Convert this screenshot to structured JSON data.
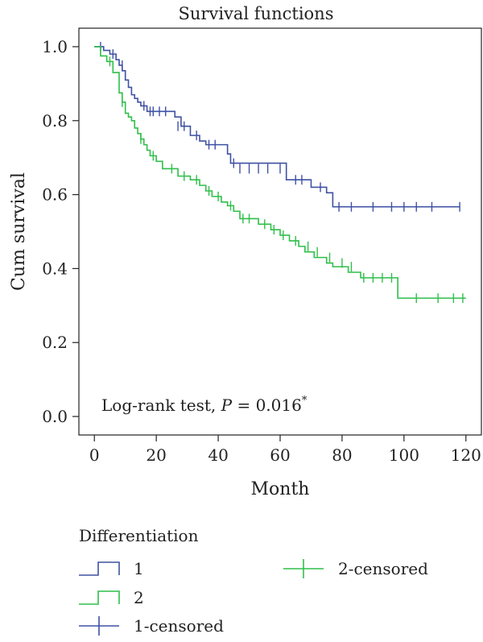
{
  "chart_data": {
    "type": "line",
    "title": "Survival functions",
    "xlabel": "Month",
    "ylabel": "Cum survival",
    "xlim": [
      -5,
      125
    ],
    "ylim": [
      -0.05,
      1.05
    ],
    "xticks": [
      0,
      20,
      40,
      60,
      80,
      100,
      120
    ],
    "xtick_labels": [
      "0",
      "20",
      "40",
      "60",
      "80",
      "100",
      "120"
    ],
    "yticks": [
      0.0,
      0.2,
      0.4,
      0.6,
      0.8,
      1.0
    ],
    "ytick_labels": [
      "0.0",
      "0.2",
      "0.4",
      "0.6",
      "0.8",
      "1.0"
    ],
    "grid": false,
    "step": true,
    "annotation": {
      "prefix": "Log-rank test, ",
      "italic": "P",
      "suffix": " = 0.016",
      "superscript": "*"
    },
    "legend": {
      "title": "Differentiation",
      "entries": [
        {
          "label": "1",
          "kind": "line",
          "series": 0
        },
        {
          "label": "2",
          "kind": "line",
          "series": 1
        },
        {
          "label": "1-censored",
          "kind": "censor",
          "series": 0
        },
        {
          "label": "2-censored",
          "kind": "censor",
          "series": 1
        }
      ]
    },
    "series": [
      {
        "name": "1",
        "color": "#3f51a3",
        "x": [
          0,
          3,
          5,
          7,
          8,
          9,
          10,
          11,
          12,
          13,
          14,
          15,
          17,
          26,
          28,
          31,
          34,
          36,
          43,
          44,
          62,
          70,
          75,
          77,
          118
        ],
        "y": [
          1.0,
          0.99,
          0.98,
          0.965,
          0.95,
          0.935,
          0.91,
          0.89,
          0.87,
          0.86,
          0.85,
          0.84,
          0.825,
          0.81,
          0.785,
          0.76,
          0.745,
          0.735,
          0.71,
          0.685,
          0.64,
          0.62,
          0.605,
          0.567,
          0.567
        ],
        "censored_x": [
          2,
          6,
          9,
          16,
          18,
          19,
          21,
          23,
          27,
          29,
          33,
          37,
          39,
          45,
          47,
          50,
          53,
          56,
          60,
          65,
          67,
          73,
          79,
          83,
          90,
          96,
          100,
          104,
          109,
          118
        ],
        "censored_y": [
          1.0,
          0.98,
          0.95,
          0.84,
          0.825,
          0.825,
          0.825,
          0.825,
          0.785,
          0.785,
          0.76,
          0.735,
          0.735,
          0.685,
          0.67,
          0.67,
          0.67,
          0.67,
          0.67,
          0.64,
          0.64,
          0.62,
          0.567,
          0.567,
          0.567,
          0.567,
          0.567,
          0.567,
          0.567,
          0.567
        ]
      },
      {
        "name": "2",
        "color": "#2fbf4a",
        "x": [
          0,
          2,
          4,
          6,
          8,
          9,
          10,
          11,
          12,
          13,
          14,
          15,
          16,
          17,
          18,
          20,
          22,
          27,
          31,
          34,
          36,
          38,
          41,
          43,
          45,
          47,
          53,
          57,
          60,
          63,
          66,
          68,
          71,
          75,
          77,
          82,
          86,
          98,
          120
        ],
        "y": [
          1.0,
          0.975,
          0.96,
          0.93,
          0.875,
          0.85,
          0.82,
          0.81,
          0.8,
          0.78,
          0.765,
          0.75,
          0.735,
          0.72,
          0.705,
          0.69,
          0.67,
          0.65,
          0.64,
          0.625,
          0.61,
          0.595,
          0.58,
          0.57,
          0.555,
          0.535,
          0.52,
          0.505,
          0.49,
          0.475,
          0.46,
          0.445,
          0.43,
          0.415,
          0.405,
          0.39,
          0.375,
          0.32,
          0.32
        ],
        "censored_x": [
          5,
          9,
          15,
          19,
          25,
          29,
          33,
          37,
          40,
          44,
          48,
          50,
          55,
          58,
          61,
          65,
          69,
          72,
          76,
          80,
          83,
          87,
          90,
          93,
          96,
          104,
          111,
          116,
          119
        ],
        "censored_y": [
          0.96,
          0.85,
          0.75,
          0.705,
          0.67,
          0.65,
          0.64,
          0.61,
          0.595,
          0.57,
          0.535,
          0.535,
          0.52,
          0.505,
          0.49,
          0.475,
          0.46,
          0.445,
          0.43,
          0.415,
          0.405,
          0.375,
          0.375,
          0.375,
          0.375,
          0.32,
          0.32,
          0.32,
          0.32
        ]
      }
    ]
  }
}
